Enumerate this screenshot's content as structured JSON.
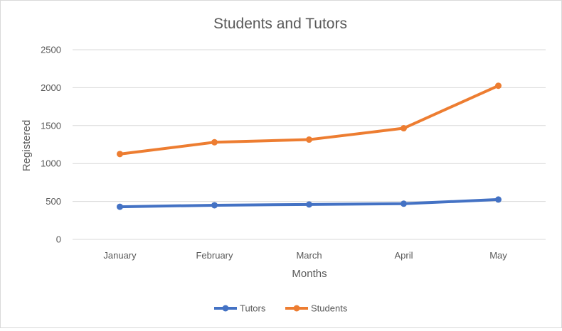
{
  "chart_data": {
    "type": "line",
    "title": "Students and Tutors",
    "xlabel": "Months",
    "ylabel": "Registered",
    "categories": [
      "January",
      "February",
      "March",
      "April",
      "May"
    ],
    "ylim": [
      0,
      2500
    ],
    "yticks": [
      "0",
      "500",
      "1000",
      "1500",
      "2000",
      "2500"
    ],
    "grid": true,
    "legend_position": "bottom",
    "series": [
      {
        "name": "Tutors",
        "color": "#4472c4",
        "values": [
          430,
          450,
          460,
          470,
          525
        ]
      },
      {
        "name": "Students",
        "color": "#ed7d31",
        "values": [
          1125,
          1280,
          1315,
          1465,
          2025
        ]
      }
    ]
  }
}
